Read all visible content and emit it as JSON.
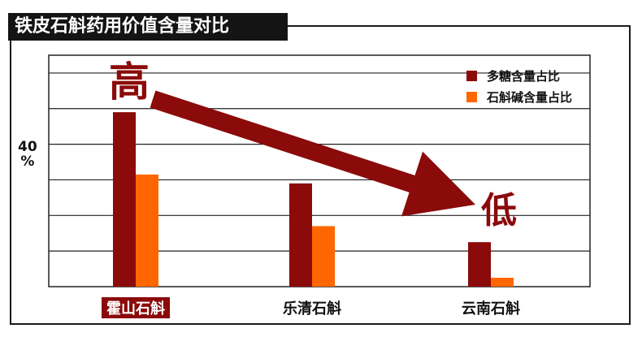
{
  "title": "铁皮石斛药用价值含量对比",
  "chart_data": {
    "type": "bar",
    "categories": [
      "霍山石斛",
      "乐清石斛",
      "云南石斛"
    ],
    "highlighted_category": 0,
    "series": [
      {
        "name": "多糖含量占比",
        "color": "#8b0a0a",
        "values": [
          49,
          29,
          12.5
        ]
      },
      {
        "name": "石斛碱含量占比",
        "color": "#ff6600",
        "values": [
          31.5,
          17,
          2.5
        ]
      }
    ],
    "ylabel_value": "40",
    "ylabel_unit": "%",
    "ylim": [
      0,
      65
    ],
    "ytick_step": 10,
    "grid": true,
    "legend_position": "top-right",
    "annotations": {
      "high": "高",
      "low": "低"
    },
    "arrow_color": "#8b0a0a"
  }
}
